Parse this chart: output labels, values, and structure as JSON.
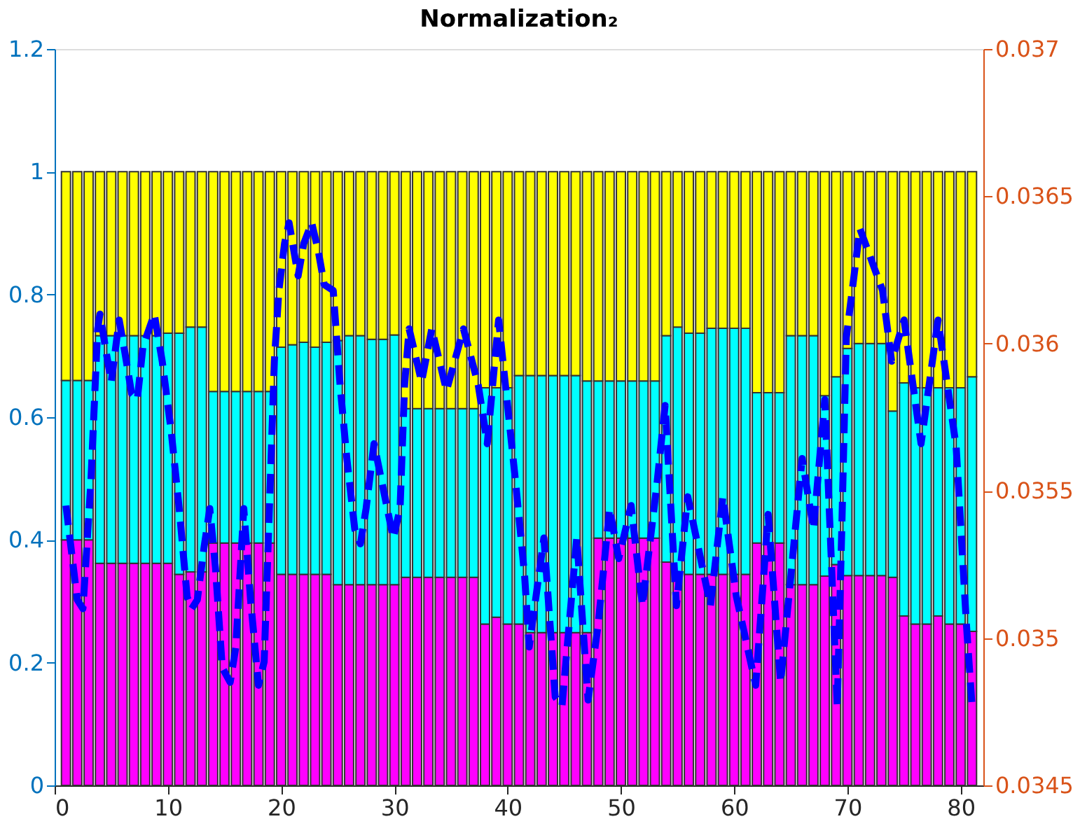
{
  "chart_data": {
    "type": "bar",
    "title": "Normalization₂",
    "stacked": true,
    "x": [
      1,
      2,
      3,
      4,
      5,
      6,
      7,
      8,
      9,
      10,
      11,
      12,
      13,
      14,
      15,
      16,
      17,
      18,
      19,
      20,
      21,
      22,
      23,
      24,
      25,
      26,
      27,
      28,
      29,
      30,
      31,
      32,
      33,
      34,
      35,
      36,
      37,
      38,
      39,
      40,
      41,
      42,
      43,
      44,
      45,
      46,
      47,
      48,
      49,
      50,
      51,
      52,
      53,
      54,
      55,
      56,
      57,
      58,
      59,
      60,
      61,
      62,
      63,
      64,
      65,
      66,
      67,
      68,
      69,
      70,
      71,
      72,
      73,
      74,
      75,
      76,
      77,
      78,
      79,
      80,
      81
    ],
    "xlim": [
      0,
      82
    ],
    "xticks": [
      0,
      10,
      20,
      30,
      40,
      50,
      60,
      70,
      80
    ],
    "ylim": [
      0,
      1.2
    ],
    "yticks": [
      0,
      0.2,
      0.4,
      0.6,
      0.8,
      1,
      1.2
    ],
    "y2lim": [
      0.0345,
      0.037
    ],
    "y2ticks": [
      0.0345,
      0.035,
      0.0355,
      0.036,
      0.0365,
      0.037
    ],
    "series": [
      {
        "color": "#ff00ff",
        "values": [
          0.4,
          0.4,
          0.4,
          0.362,
          0.362,
          0.362,
          0.362,
          0.362,
          0.362,
          0.362,
          0.344,
          0.348,
          0.348,
          0.395,
          0.395,
          0.395,
          0.395,
          0.395,
          0.395,
          0.344,
          0.344,
          0.344,
          0.344,
          0.344,
          0.327,
          0.327,
          0.327,
          0.327,
          0.327,
          0.327,
          0.339,
          0.339,
          0.339,
          0.339,
          0.339,
          0.339,
          0.339,
          0.263,
          0.274,
          0.263,
          0.263,
          0.249,
          0.249,
          0.249,
          0.249,
          0.249,
          0.249,
          0.403,
          0.403,
          0.403,
          0.403,
          0.403,
          0.403,
          0.364,
          0.344,
          0.344,
          0.344,
          0.344,
          0.344,
          0.344,
          0.344,
          0.395,
          0.395,
          0.395,
          0.327,
          0.327,
          0.327,
          0.341,
          0.36,
          0.342,
          0.342,
          0.342,
          0.342,
          0.339,
          0.276,
          0.263,
          0.263,
          0.276,
          0.263,
          0.263,
          0.251
        ]
      },
      {
        "color": "#00ffff",
        "values": [
          0.26,
          0.26,
          0.26,
          0.371,
          0.371,
          0.371,
          0.371,
          0.371,
          0.371,
          0.375,
          0.393,
          0.399,
          0.399,
          0.247,
          0.247,
          0.247,
          0.247,
          0.247,
          0.247,
          0.37,
          0.374,
          0.378,
          0.37,
          0.378,
          0.398,
          0.406,
          0.406,
          0.4,
          0.4,
          0.407,
          0.275,
          0.275,
          0.275,
          0.275,
          0.275,
          0.275,
          0.275,
          0.385,
          0.374,
          0.385,
          0.405,
          0.419,
          0.419,
          0.419,
          0.419,
          0.419,
          0.41,
          0.256,
          0.256,
          0.256,
          0.256,
          0.256,
          0.256,
          0.369,
          0.403,
          0.393,
          0.393,
          0.401,
          0.401,
          0.401,
          0.401,
          0.245,
          0.245,
          0.245,
          0.406,
          0.406,
          0.406,
          0.294,
          0.306,
          0.37,
          0.378,
          0.378,
          0.378,
          0.271,
          0.38,
          0.385,
          0.385,
          0.372,
          0.385,
          0.385,
          0.415
        ]
      },
      {
        "color": "#ffff00",
        "values": [
          0.34,
          0.34,
          0.34,
          0.267,
          0.267,
          0.267,
          0.267,
          0.267,
          0.267,
          0.263,
          0.263,
          0.253,
          0.253,
          0.358,
          0.358,
          0.358,
          0.358,
          0.358,
          0.358,
          0.286,
          0.282,
          0.278,
          0.286,
          0.278,
          0.275,
          0.267,
          0.267,
          0.273,
          0.273,
          0.266,
          0.386,
          0.386,
          0.386,
          0.386,
          0.386,
          0.386,
          0.386,
          0.352,
          0.352,
          0.352,
          0.332,
          0.332,
          0.332,
          0.332,
          0.332,
          0.332,
          0.341,
          0.341,
          0.341,
          0.341,
          0.341,
          0.341,
          0.341,
          0.267,
          0.253,
          0.263,
          0.263,
          0.255,
          0.255,
          0.255,
          0.255,
          0.36,
          0.36,
          0.36,
          0.267,
          0.267,
          0.267,
          0.365,
          0.334,
          0.288,
          0.28,
          0.28,
          0.28,
          0.39,
          0.344,
          0.352,
          0.352,
          0.352,
          0.352,
          0.352,
          0.334
        ]
      },
      {
        "type": "line",
        "axis": "y2",
        "color": "#0000ff",
        "line_style": "dashed",
        "x": [
          1.0,
          2.0,
          2.5,
          3.2,
          3.8,
          4.0,
          4.6,
          5.0,
          5.7,
          6.2,
          6.8,
          7.3,
          7.8,
          8.8,
          9.5,
          10.3,
          11.0,
          11.7,
          12.1,
          12.6,
          13.2,
          13.7,
          14.2,
          14.8,
          15.5,
          16.0,
          16.7,
          17.3,
          18.0,
          18.5,
          18.9,
          19.4,
          19.8,
          20.3,
          20.7,
          21.5,
          22.0,
          22.7,
          23.3,
          23.8,
          24.6,
          25.2,
          25.8,
          26.5,
          27.0,
          27.5,
          28.2,
          29.9,
          30.5,
          30.9,
          31.3,
          32.4,
          33.3,
          34.6,
          36.1,
          37.4,
          38.2,
          39.2,
          39.8,
          40.7,
          41.5,
          41.9,
          43.2,
          44.2,
          44.8,
          46.1,
          47.1,
          48.0,
          49.0,
          49.8,
          50.9,
          51.9,
          53.2,
          53.9,
          54.9,
          55.9,
          57.9,
          59.0,
          60.2,
          61.9,
          63.0,
          64.1,
          66.0,
          67.0,
          68.0,
          69.1,
          69.5,
          69.9,
          71.1,
          73.1,
          73.9,
          75.0,
          76.5,
          78.0,
          79.6,
          80.5,
          81.0
        ],
        "values": [
          0.03545,
          0.03513,
          0.0351,
          0.03553,
          0.03605,
          0.0361,
          0.03596,
          0.03587,
          0.03608,
          0.03597,
          0.03583,
          0.03581,
          0.03599,
          0.0361,
          0.03594,
          0.0357,
          0.03544,
          0.03514,
          0.0351,
          0.03513,
          0.03531,
          0.03544,
          0.03524,
          0.0349,
          0.03485,
          0.03497,
          0.03544,
          0.03513,
          0.03484,
          0.03492,
          0.03537,
          0.03594,
          0.03618,
          0.03634,
          0.03641,
          0.03623,
          0.03634,
          0.03641,
          0.03631,
          0.0362,
          0.03618,
          0.03586,
          0.03561,
          0.03537,
          0.03532,
          0.03544,
          0.03566,
          0.03534,
          0.03544,
          0.03586,
          0.03605,
          0.03587,
          0.03605,
          0.03584,
          0.03605,
          0.03586,
          0.03566,
          0.03608,
          0.03586,
          0.03553,
          0.03521,
          0.03497,
          0.03534,
          0.0348,
          0.03477,
          0.03534,
          0.03479,
          0.03505,
          0.03544,
          0.03527,
          0.03545,
          0.03511,
          0.03553,
          0.03579,
          0.03511,
          0.03548,
          0.03511,
          0.03548,
          0.03514,
          0.03484,
          0.03542,
          0.03485,
          0.03561,
          0.03537,
          0.03581,
          0.03477,
          0.03537,
          0.03602,
          0.03639,
          0.03618,
          0.03594,
          0.03608,
          0.03566,
          0.03608,
          0.03565,
          0.03505,
          0.03477
        ]
      }
    ]
  }
}
